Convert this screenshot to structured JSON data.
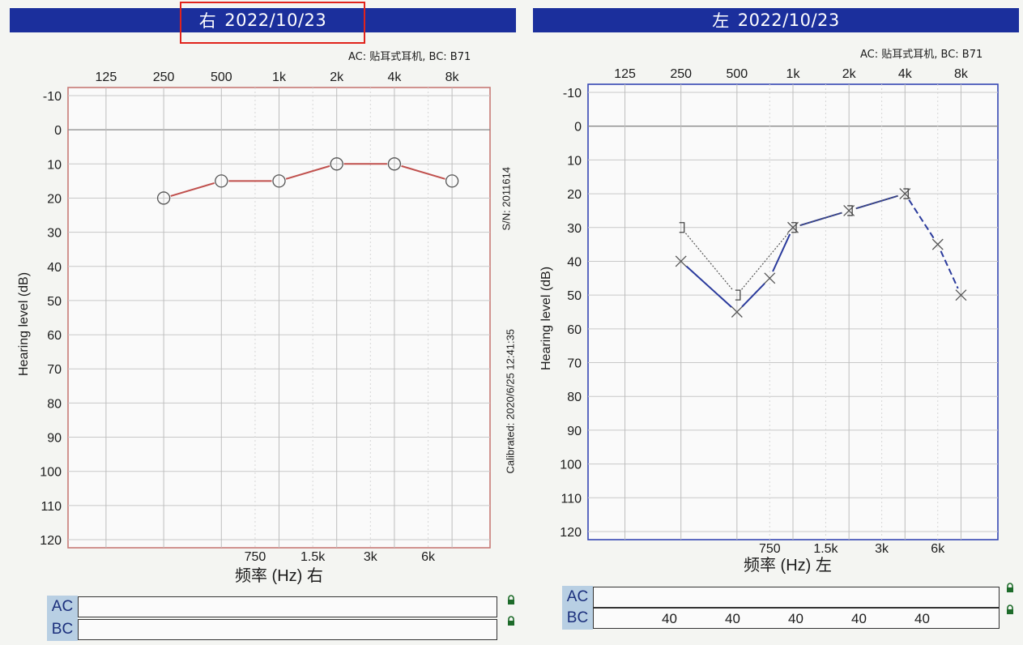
{
  "right_panel": {
    "ear": "右",
    "date": "2022/10/23",
    "ac_bc_caption": "AC: 贴耳式耳机, BC: B71",
    "x_ticks_top": [
      "125",
      "250",
      "500",
      "1k",
      "2k",
      "4k",
      "8k"
    ],
    "x_ticks_bottom": [
      "750",
      "1.5k",
      "3k",
      "6k"
    ],
    "x_label": "频率 (Hz) 右",
    "y_label": "Hearing level (dB)",
    "serial": "S/N: 2011614",
    "calibrated": "Calibrated: 2020/6/25 12:41:35",
    "row_ac": "AC",
    "row_bc": "BC",
    "color": "#c0504d"
  },
  "left_panel": {
    "ear": "左",
    "date": "2022/10/23",
    "ac_bc_caption": "AC: 贴耳式耳机, BC: B71",
    "x_ticks_top": [
      "125",
      "250",
      "500",
      "1k",
      "2k",
      "4k",
      "8k"
    ],
    "x_ticks_bottom": [
      "750",
      "1.5k",
      "3k",
      "6k"
    ],
    "x_label": "频率 (Hz) 左",
    "y_label": "Hearing level (dB)",
    "row_ac": "AC",
    "row_bc": "BC",
    "bc_values": [
      "40",
      "40",
      "40",
      "40",
      "40"
    ],
    "color": "#2a3a9c"
  },
  "y_ticks": [
    "-10",
    "0",
    "10",
    "20",
    "30",
    "40",
    "50",
    "60",
    "70",
    "80",
    "90",
    "100",
    "110",
    "120"
  ],
  "chart_data": [
    {
      "type": "line",
      "ear": "右",
      "xlabel": "频率 (Hz) 右",
      "ylabel": "Hearing level (dB)",
      "ylim": [
        -10,
        120
      ],
      "x_scale": "log2",
      "series": [
        {
          "name": "AC",
          "marker": "circle",
          "x": [
            250,
            500,
            1000,
            2000,
            4000,
            8000
          ],
          "y": [
            20,
            15,
            15,
            10,
            10,
            15
          ]
        }
      ]
    },
    {
      "type": "line",
      "ear": "左",
      "xlabel": "频率 (Hz) 左",
      "ylabel": "Hearing level (dB)",
      "ylim": [
        -10,
        120
      ],
      "x_scale": "log2",
      "series": [
        {
          "name": "AC",
          "marker": "x",
          "x": [
            250,
            500,
            750,
            1000,
            2000,
            4000,
            6000,
            8000
          ],
          "y": [
            40,
            55,
            45,
            30,
            25,
            20,
            35,
            50
          ]
        },
        {
          "name": "BC",
          "marker": "bracket",
          "x": [
            250,
            500,
            1000,
            2000,
            4000
          ],
          "y": [
            30,
            50,
            30,
            25,
            20
          ]
        }
      ]
    }
  ]
}
